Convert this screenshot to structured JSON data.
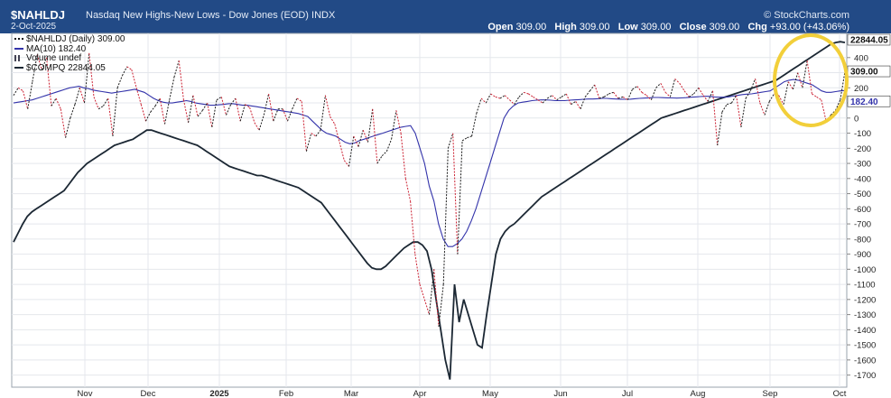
{
  "header": {
    "symbol": "$NAHLDJ",
    "subtitle": "Nasdaq New Highs-New Lows - Dow Jones (EOD)  INDX",
    "date": "2-Oct-2025",
    "brand": "© StockCharts.com",
    "open_label": "Open",
    "open_value": "309.00",
    "high_label": "High",
    "high_value": "309.00",
    "low_label": "Low",
    "low_value": "309.00",
    "close_label": "Close",
    "close_value": "309.00",
    "chg_label": "Chg",
    "chg_value": "+93.00 (+43.06%)"
  },
  "legend": {
    "nahl": "$NAHLDJ (Daily) 309.00",
    "ma": "MA(10) 182.40",
    "vol": "Volume undef",
    "comp": "$COMPQ 22844.05"
  },
  "price_tags": {
    "comp": "22844.05",
    "nahl": "309.00",
    "ma": "182.40"
  },
  "colors": {
    "header_bg": "#224a86",
    "nahl_up": "#1a1a1a",
    "nahl_down": "#cc2233",
    "ma": "#3333aa",
    "comp": "#1b2733",
    "highlight": "#f2cf3a"
  },
  "chart_data": {
    "type": "line",
    "x_ticks": [
      "Nov",
      "Dec",
      "2025",
      "Feb",
      "Mar",
      "Apr",
      "May",
      "Jun",
      "Jul",
      "Aug",
      "Sep",
      "Oct"
    ],
    "y_ticks": [
      "400",
      "300",
      "200",
      "100",
      "0",
      "-100",
      "-200",
      "-300",
      "-400",
      "-500",
      "-600",
      "-700",
      "-800",
      "-900",
      "-1000",
      "-1100",
      "-1200",
      "-1300",
      "-1400",
      "-1500",
      "-1600",
      "-1700"
    ],
    "ylim": [
      -1780,
      560
    ],
    "series": [
      {
        "name": "$NAHLDJ (Daily)",
        "values": [
          150,
          200,
          180,
          60,
          240,
          420,
          320,
          400,
          80,
          130,
          60,
          -130,
          0,
          90,
          200,
          100,
          430,
          140,
          60,
          80,
          130,
          -120,
          200,
          280,
          340,
          320,
          200,
          90,
          -20,
          40,
          80,
          130,
          -40,
          120,
          270,
          380,
          120,
          -30,
          150,
          10,
          50,
          100,
          -60,
          120,
          140,
          20,
          90,
          130,
          -20,
          90,
          70,
          -30,
          -80,
          20,
          160,
          -20,
          60,
          60,
          -20,
          60,
          130,
          110,
          -220,
          -100,
          -120,
          -80,
          150,
          10,
          -40,
          -160,
          -280,
          -320,
          -120,
          -190,
          -80,
          -160,
          60,
          -300,
          -250,
          -220,
          -140,
          50,
          -100,
          -400,
          -550,
          -900,
          -1100,
          -1200,
          -1300,
          -1000,
          -1380,
          -1100,
          -200,
          -100,
          -900,
          -150,
          -130,
          -120,
          30,
          130,
          100,
          160,
          140,
          130,
          150,
          120,
          90,
          140,
          170,
          160,
          140,
          120,
          100,
          130,
          150,
          120,
          140,
          160,
          90,
          110,
          60,
          140,
          180,
          220,
          130,
          140,
          160,
          170,
          130,
          140,
          120,
          190,
          210,
          170,
          150,
          120,
          200,
          230,
          170,
          140,
          260,
          230,
          180,
          140,
          160,
          200,
          150,
          110,
          180,
          -180,
          40,
          90,
          100,
          150,
          -60,
          130,
          180,
          260,
          100,
          20,
          110,
          160,
          150,
          90,
          240,
          190,
          300,
          200,
          380,
          160,
          140,
          120,
          -20,
          20,
          50,
          120,
          309
        ]
      },
      {
        "name": "MA(10)",
        "values": [
          100,
          105,
          110,
          115,
          120,
          130,
          140,
          150,
          160,
          170,
          180,
          190,
          200,
          205,
          210,
          200,
          195,
          185,
          180,
          175,
          170,
          165,
          170,
          175,
          180,
          185,
          190,
          180,
          170,
          150,
          130,
          115,
          105,
          100,
          100,
          105,
          110,
          115,
          110,
          100,
          95,
          90,
          85,
          85,
          88,
          90,
          95,
          95,
          90,
          85,
          85,
          80,
          75,
          70,
          65,
          60,
          55,
          50,
          45,
          40,
          35,
          30,
          20,
          10,
          -20,
          -50,
          -80,
          -100,
          -110,
          -120,
          -140,
          -160,
          -170,
          -165,
          -150,
          -140,
          -130,
          -120,
          -110,
          -100,
          -90,
          -80,
          -70,
          -60,
          -55,
          -50,
          -100,
          -200,
          -300,
          -450,
          -550,
          -700,
          -800,
          -850,
          -850,
          -830,
          -800,
          -750,
          -680,
          -600,
          -500,
          -400,
          -300,
          -200,
          -100,
          0,
          50,
          80,
          100,
          105,
          110,
          115,
          118,
          120,
          120,
          118,
          115,
          115,
          115,
          118,
          120,
          122,
          124,
          126,
          126,
          128,
          130,
          130,
          128,
          126,
          125,
          124,
          125,
          128,
          130,
          132,
          134,
          136,
          136,
          135,
          134,
          133,
          132,
          133,
          135,
          138,
          140,
          142,
          144,
          144,
          140,
          138,
          138,
          140,
          145,
          150,
          155,
          158,
          160,
          165,
          170,
          175,
          180,
          200,
          220,
          240,
          250,
          255,
          250,
          240,
          230,
          220,
          200,
          180,
          170,
          170,
          175,
          180,
          182.4
        ]
      },
      {
        "name": "$COMPQ",
        "values": [
          -820,
          -760,
          -700,
          -650,
          -620,
          -600,
          -580,
          -560,
          -540,
          -520,
          -500,
          -480,
          -440,
          -400,
          -360,
          -330,
          -300,
          -280,
          -260,
          -240,
          -220,
          -200,
          -180,
          -170,
          -160,
          -150,
          -140,
          -120,
          -100,
          -80,
          -80,
          -90,
          -100,
          -110,
          -120,
          -130,
          -140,
          -150,
          -160,
          -170,
          -180,
          -200,
          -220,
          -240,
          -260,
          -280,
          -300,
          -320,
          -330,
          -340,
          -350,
          -360,
          -370,
          -380,
          -380,
          -390,
          -400,
          -410,
          -420,
          -430,
          -440,
          -450,
          -460,
          -480,
          -500,
          -520,
          -540,
          -560,
          -600,
          -640,
          -680,
          -720,
          -760,
          -800,
          -840,
          -880,
          -920,
          -960,
          -990,
          -1000,
          -1000,
          -980,
          -950,
          -920,
          -890,
          -860,
          -840,
          -820,
          -820,
          -840,
          -880,
          -1000,
          -1200,
          -1400,
          -1600,
          -1730,
          -1100,
          -1350,
          -1200,
          -1300,
          -1400,
          -1500,
          -1520,
          -1300,
          -1100,
          -900,
          -800,
          -750,
          -720,
          -700,
          -670,
          -640,
          -610,
          -580,
          -550,
          -520,
          -500,
          -480,
          -460,
          -440,
          -420,
          -400,
          -380,
          -360,
          -340,
          -320,
          -300,
          -280,
          -260,
          -240,
          -220,
          -200,
          -180,
          -160,
          -140,
          -120,
          -100,
          -80,
          -60,
          -40,
          -20,
          0,
          10,
          20,
          30,
          40,
          50,
          60,
          70,
          80,
          90,
          100,
          110,
          120,
          130,
          140,
          150,
          160,
          170,
          180,
          190,
          200,
          210,
          220,
          230,
          240,
          250,
          270,
          290,
          310,
          330,
          350,
          370,
          390,
          410,
          430,
          450,
          470,
          490,
          500,
          505,
          500
        ]
      }
    ]
  }
}
